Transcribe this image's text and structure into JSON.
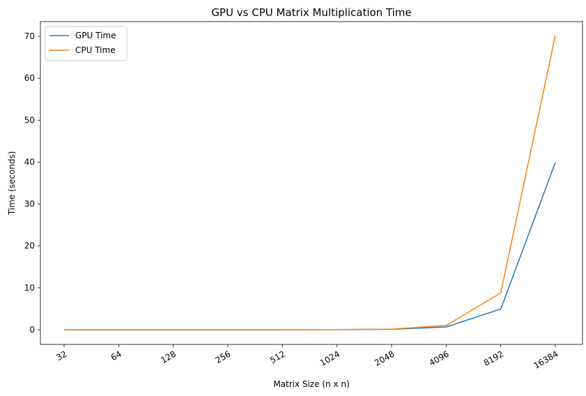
{
  "chart_data": {
    "type": "line",
    "title": "GPU vs CPU Matrix Multiplication Time",
    "xlabel": "Matrix Size (n x n)",
    "ylabel": "Time (seconds)",
    "categories": [
      "32",
      "64",
      "128",
      "256",
      "512",
      "1024",
      "2048",
      "4096",
      "8192",
      "16384"
    ],
    "ylim": [
      -3.5,
      73.5
    ],
    "yticks": [
      0,
      10,
      20,
      30,
      40,
      50,
      60,
      70
    ],
    "grid": false,
    "legend_position": "top-left",
    "series": [
      {
        "name": "GPU Time",
        "color": "#1f77b4",
        "values": [
          0.0,
          0.0,
          0.0,
          0.0,
          0.0,
          0.02,
          0.1,
          0.65,
          4.95,
          39.9
        ]
      },
      {
        "name": "CPU Time",
        "color": "#ff7f0e",
        "values": [
          0.0,
          0.0,
          0.0,
          0.0,
          0.0,
          0.03,
          0.15,
          1.0,
          8.8,
          70.2
        ]
      }
    ]
  }
}
